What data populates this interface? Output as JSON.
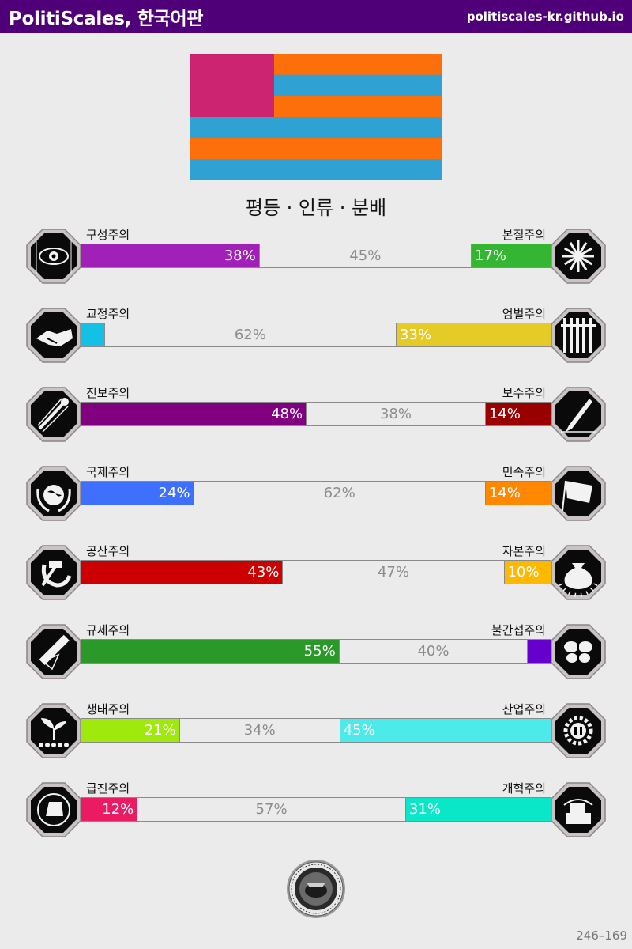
{
  "header": {
    "title": "PolitiScales, 한국어판",
    "url": "politiscales-kr.github.io",
    "bg_color": "#4f0079"
  },
  "flag": {
    "canton_color": "#cc2470",
    "stripe_colors": [
      "#fd6f0b",
      "#2fa1d3"
    ]
  },
  "ideology_text": "평등 · 인류 · 분배",
  "axes": [
    {
      "left_label": "구성주의",
      "right_label": "본질주의",
      "left_pct": 38,
      "mid_pct": 45,
      "right_pct": 17,
      "left_text": "38%",
      "mid_text": "45%",
      "right_text": "17%",
      "left_color": "#a020b8",
      "right_color": "#34b633",
      "left_icon": "eye-icon",
      "right_icon": "flower-icon"
    },
    {
      "left_label": "교정주의",
      "right_label": "엄벌주의",
      "left_pct": 5,
      "mid_pct": 62,
      "right_pct": 33,
      "left_text": "",
      "mid_text": "62%",
      "right_text": "33%",
      "left_color": "#13c0e6",
      "right_color": "#e5cb26",
      "left_icon": "handshake-icon",
      "right_icon": "prison-bars-icon"
    },
    {
      "left_label": "진보주의",
      "right_label": "보수주의",
      "left_pct": 48,
      "mid_pct": 38,
      "right_pct": 14,
      "left_text": "48%",
      "mid_text": "38%",
      "right_text": "14%",
      "left_color": "#800080",
      "right_color": "#990000",
      "left_icon": "comet-icon",
      "right_icon": "quill-pen-icon"
    },
    {
      "left_label": "국제주의",
      "right_label": "민족주의",
      "left_pct": 24,
      "mid_pct": 62,
      "right_pct": 14,
      "left_text": "24%",
      "mid_text": "62%",
      "right_text": "14%",
      "left_color": "#3f6fff",
      "right_color": "#ff8800",
      "left_icon": "globe-wreath-icon",
      "right_icon": "flag-icon"
    },
    {
      "left_label": "공산주의",
      "right_label": "자본주의",
      "left_pct": 43,
      "mid_pct": 47,
      "right_pct": 10,
      "left_text": "43%",
      "mid_text": "47%",
      "right_text": "10%",
      "left_color": "#cc0000",
      "right_color": "#ffb800",
      "left_icon": "hammer-sickle-icon",
      "right_icon": "money-bag-icon"
    },
    {
      "left_label": "규제주의",
      "right_label": "불간섭주의",
      "left_pct": 55,
      "mid_pct": 40,
      "right_pct": 5,
      "left_text": "55%",
      "mid_text": "40%",
      "right_text": "",
      "left_color": "#2a992a",
      "right_color": "#6600cc",
      "left_icon": "ruler-icon",
      "right_icon": "butterfly-icon"
    },
    {
      "left_label": "생태주의",
      "right_label": "산업주의",
      "left_pct": 21,
      "mid_pct": 34,
      "right_pct": 45,
      "left_text": "21%",
      "mid_text": "34%",
      "right_text": "45%",
      "left_color": "#a0e90d",
      "right_color": "#4deaea",
      "left_icon": "sprout-icon",
      "right_icon": "gear-icon"
    },
    {
      "left_label": "급진주의",
      "right_label": "개혁주의",
      "left_pct": 12,
      "mid_pct": 57,
      "right_pct": 31,
      "left_text": "12%",
      "mid_text": "57%",
      "right_text": "31%",
      "left_color": "#ea1a63",
      "right_color": "#0ae6c8",
      "left_icon": "fist-icon",
      "right_icon": "ballot-box-icon"
    }
  ],
  "seal_icon": "seal-emblem-icon",
  "footer_code": "246–169"
}
